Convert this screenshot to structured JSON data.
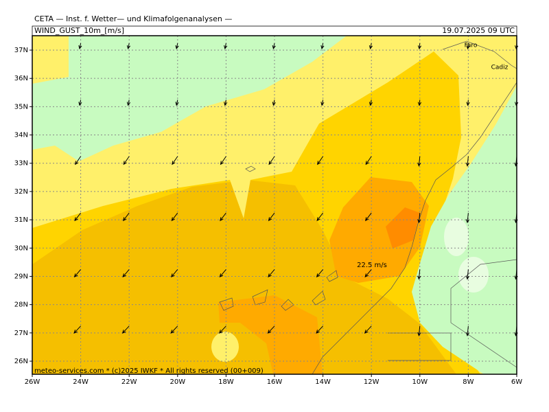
{
  "header": {
    "institute": "CETA — Inst. f. Wetter— und Klimafolgenanalysen —",
    "parameter": "WIND_GUST_10m_[m/s]",
    "valid_time": "19.07.2025 09 UTC"
  },
  "map": {
    "lat_labels": [
      "37N",
      "36N",
      "35N",
      "34N",
      "33N",
      "32N",
      "31N",
      "30N",
      "29N",
      "28N",
      "27N",
      "26N"
    ],
    "lon_labels": [
      "26W",
      "24W",
      "22W",
      "20W",
      "18W",
      "16W",
      "14W",
      "12W",
      "10W",
      "8W",
      "6W"
    ],
    "places": [
      "Faro",
      "Cadiz"
    ],
    "annotation": "22.5 m/s"
  },
  "footer": "meteo-services.com * (c)2025 IWKF * All rights reserved (00+009)"
}
